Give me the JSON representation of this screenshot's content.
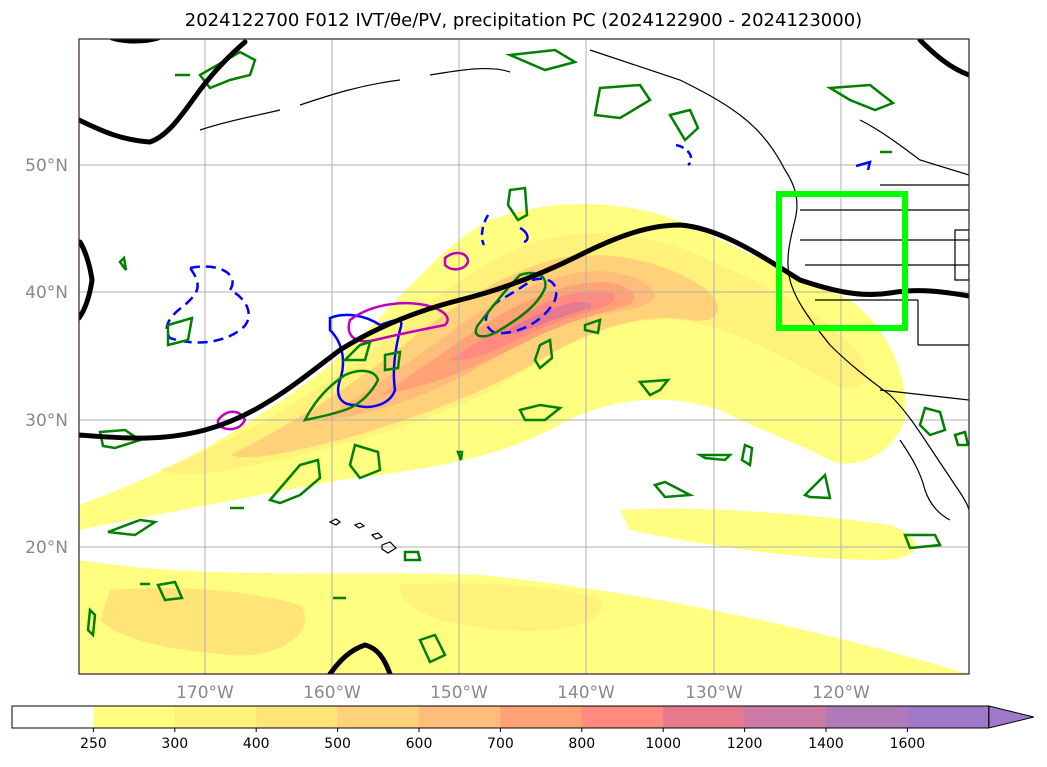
{
  "title_text": "2024122700 F012 IVT/θe/PV, precipitation PC (2024122900 - 2024123000)",
  "latitude_labels": [
    "50°N",
    "40°N",
    "30°N",
    "20°N"
  ],
  "longitude_labels": [
    "170°W",
    "160°W",
    "150°W",
    "140°W",
    "130°W",
    "120°W"
  ],
  "colorbar": {
    "ticks": [
      "250",
      "300",
      "400",
      "500",
      "600",
      "700",
      "800",
      "1000",
      "1200",
      "1400",
      "1600"
    ],
    "colors": [
      "#ffffff",
      "#fffe80",
      "#fff27a",
      "#ffe478",
      "#ffd27a",
      "#ffbc7a",
      "#ffa275",
      "#ff8a80",
      "#e47a8c",
      "#cb7aa6",
      "#b07ab8",
      "#a07ac8"
    ],
    "extend": "max"
  },
  "colors": {
    "frame": "#3a1a3a",
    "front_line": "#000000",
    "box": "#00ff00",
    "contour_green": "#008000",
    "contour_blue": "#0000ff",
    "contour_magenta": "#c000c0",
    "gridline": "#b0b0b0"
  }
}
